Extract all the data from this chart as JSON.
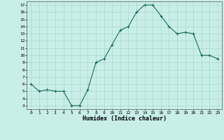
{
  "x": [
    0,
    1,
    2,
    3,
    4,
    5,
    6,
    7,
    8,
    9,
    10,
    11,
    12,
    13,
    14,
    15,
    16,
    17,
    18,
    19,
    20,
    21,
    22,
    23
  ],
  "y": [
    6.0,
    5.0,
    5.2,
    5.0,
    5.0,
    3.0,
    3.0,
    5.2,
    9.0,
    9.5,
    11.5,
    13.5,
    14.0,
    16.0,
    17.0,
    17.0,
    15.5,
    14.0,
    13.0,
    13.2,
    13.0,
    10.0,
    10.0,
    9.5
  ],
  "line_color": "#1a6b5a",
  "marker": "+",
  "marker_size": 3,
  "bg_color": "#c8eee8",
  "grid_color": "#aad8d0",
  "xlabel": "Humidex (Indice chaleur)",
  "xlim": [
    -0.5,
    23.5
  ],
  "ylim": [
    2.5,
    17.5
  ],
  "yticks": [
    3,
    4,
    5,
    6,
    7,
    8,
    9,
    10,
    11,
    12,
    13,
    14,
    15,
    16,
    17
  ],
  "xtick_labels": [
    "0",
    "1",
    "2",
    "3",
    "4",
    "5",
    "6",
    "7",
    "8",
    "9",
    "10",
    "11",
    "12",
    "13",
    "14",
    "15",
    "16",
    "17",
    "18",
    "19",
    "20",
    "21",
    "22",
    "23"
  ],
  "tick_fontsize": 4.5,
  "label_fontsize": 6.0,
  "spine_color": "#555555"
}
